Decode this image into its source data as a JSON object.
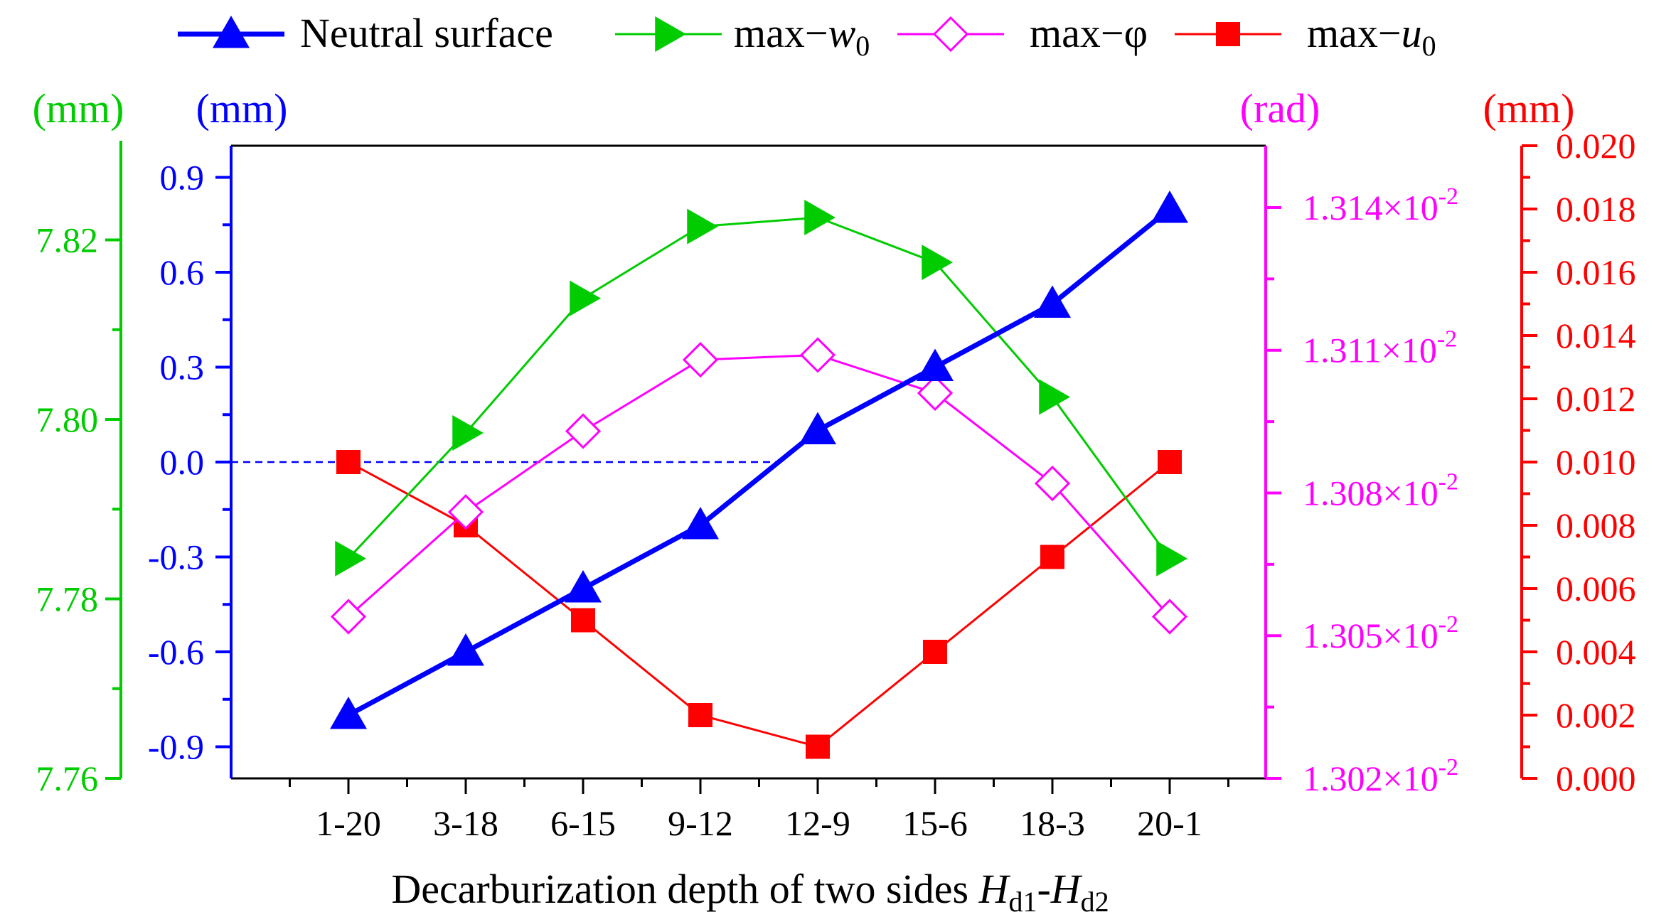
{
  "chart_data": {
    "type": "line",
    "title": "",
    "categories": [
      "1-20",
      "3-18",
      "6-15",
      "9-12",
      "12-9",
      "15-6",
      "18-3",
      "20-1"
    ],
    "xlabel": {
      "text": "Decarburization depth of two sides ",
      "var1": "H",
      "sub1": "d1",
      "dash": "-",
      "var2": "H",
      "sub2": "d2"
    },
    "colors": {
      "blue": "#0000ff",
      "green": "#00cc00",
      "magenta": "#ff00ff",
      "red": "#ff0000",
      "black": "#000000"
    },
    "axes": {
      "neutral": {
        "unit": "(mm)",
        "ylim": [
          -1.0,
          1.0
        ],
        "ticks": [
          -0.9,
          -0.6,
          -0.3,
          0.0,
          0.3,
          0.6,
          0.9
        ],
        "tick_labels": [
          "-0.9",
          "-0.6",
          "-0.3",
          "0.0",
          "0.3",
          "0.6",
          "0.9"
        ],
        "color": "#0000ff"
      },
      "w0": {
        "unit": "(mm)",
        "ylim": [
          7.76,
          7.8305
        ],
        "ticks": [
          7.76,
          7.78,
          7.8,
          7.82
        ],
        "tick_labels": [
          "7.76",
          "7.78",
          "7.80",
          "7.82"
        ],
        "color": "#00cc00"
      },
      "phi": {
        "unit": "(rad)",
        "ylim": [
          1.302,
          1.3153
        ],
        "ticks": [
          1.302,
          1.305,
          1.308,
          1.311,
          1.314
        ],
        "tick_labels": [
          {
            "mantissa": "1.302",
            "times": "×10",
            "exp": "-2"
          },
          {
            "mantissa": "1.305",
            "times": "×10",
            "exp": "-2"
          },
          {
            "mantissa": "1.308",
            "times": "×10",
            "exp": "-2"
          },
          {
            "mantissa": "1.311",
            "times": "×10",
            "exp": "-2"
          },
          {
            "mantissa": "1.314",
            "times": "×10",
            "exp": "-2"
          }
        ],
        "color": "#ff00ff"
      },
      "u0": {
        "unit": "(mm)",
        "ylim": [
          0.0,
          0.02
        ],
        "ticks": [
          0.0,
          0.002,
          0.004,
          0.006,
          0.008,
          0.01,
          0.012,
          0.014,
          0.016,
          0.018,
          0.02
        ],
        "tick_labels": [
          "0.000",
          "0.002",
          "0.004",
          "0.006",
          "0.008",
          "0.010",
          "0.012",
          "0.014",
          "0.016",
          "0.018",
          "0.020"
        ],
        "color": "#ff0000"
      }
    },
    "series": [
      {
        "key": "neutral",
        "name": "Neutral surface",
        "axis": "neutral",
        "marker": "triangle-up",
        "color": "#0000ff",
        "values": [
          -0.8,
          -0.6,
          -0.4,
          -0.2,
          0.1,
          0.3,
          0.5,
          0.8
        ]
      },
      {
        "key": "w0",
        "name": "max−",
        "name_var": "w",
        "name_sub": "0",
        "axis": "w0",
        "marker": "triangle-right",
        "color": "#00cc00",
        "values": [
          7.7845,
          7.7985,
          7.8135,
          7.8215,
          7.8225,
          7.8175,
          7.8025,
          7.7845
        ]
      },
      {
        "key": "phi",
        "name": "max−φ",
        "axis": "phi",
        "marker": "diamond-open",
        "color": "#ff00ff",
        "values": [
          1.3054,
          1.3076,
          1.3093,
          1.3108,
          1.3109,
          1.3101,
          1.3082,
          1.3054
        ]
      },
      {
        "key": "u0",
        "name": "max−",
        "name_var": "u",
        "name_sub": "0",
        "axis": "u0",
        "marker": "square",
        "color": "#ff0000",
        "values": [
          0.01,
          0.008,
          0.005,
          0.002,
          0.001,
          0.004,
          0.007,
          0.01
        ]
      }
    ],
    "reference_line": {
      "axis": "neutral",
      "value": 0.0,
      "style": "dashed",
      "color": "#0000ff"
    },
    "legend": {
      "placement": "top"
    }
  }
}
